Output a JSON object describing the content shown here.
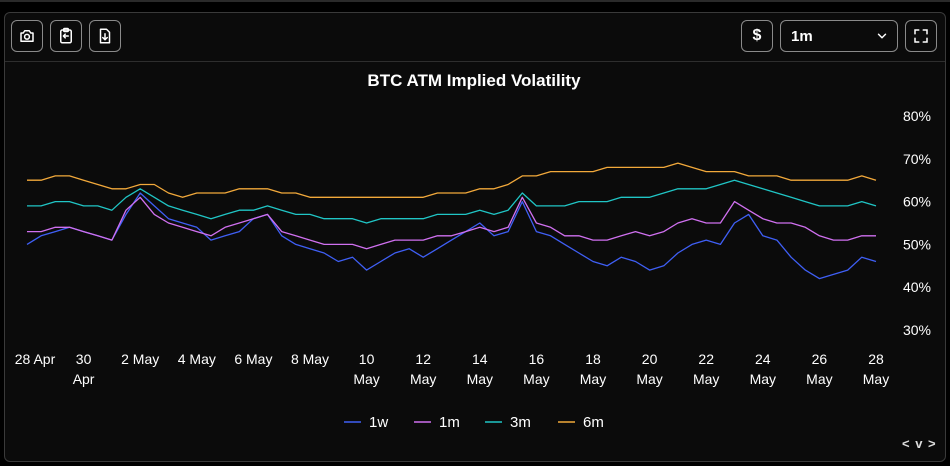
{
  "toolbar": {
    "currency_label": "$",
    "period_selected": "1m",
    "icons": [
      "camera-icon",
      "clipboard-copy-icon",
      "file-download-icon",
      "chevron-down-icon",
      "fullscreen-icon"
    ]
  },
  "nav": {
    "label": "< v >"
  },
  "chart_data": {
    "type": "line",
    "title": "BTC ATM Implied Volatility",
    "xlabel": "",
    "ylabel": "",
    "ylim": [
      30,
      80
    ],
    "yticks": [
      "80%",
      "70%",
      "60%",
      "50%",
      "40%",
      "30%"
    ],
    "ytick_values": [
      80,
      70,
      60,
      50,
      40,
      30
    ],
    "x_tick_labels": [
      [
        "28 Apr"
      ],
      [
        "30",
        "Apr"
      ],
      [
        "2 May"
      ],
      [
        "4 May"
      ],
      [
        "6 May"
      ],
      [
        "8 May"
      ],
      [
        "10",
        "May"
      ],
      [
        "12",
        "May"
      ],
      [
        "14",
        "May"
      ],
      [
        "16",
        "May"
      ],
      [
        "18",
        "May"
      ],
      [
        "20",
        "May"
      ],
      [
        "22",
        "May"
      ],
      [
        "24",
        "May"
      ],
      [
        "26",
        "May"
      ],
      [
        "28",
        "May"
      ]
    ],
    "x_tick_days": [
      0,
      2,
      4,
      6,
      8,
      10,
      12,
      14,
      16,
      18,
      20,
      22,
      24,
      26,
      28,
      30
    ],
    "x_range_days": [
      0,
      30
    ],
    "series": [
      {
        "name": "1w",
        "color": "#3f5ff5",
        "x": [
          0,
          0.5,
          1,
          1.5,
          2,
          2.5,
          3,
          3.5,
          4,
          4.5,
          5,
          5.5,
          6,
          6.5,
          7,
          7.5,
          8,
          8.5,
          9,
          9.5,
          10,
          10.5,
          11,
          11.5,
          12,
          12.5,
          13,
          13.5,
          14,
          14.5,
          15,
          15.5,
          16,
          16.5,
          17,
          17.5,
          18,
          18.5,
          19,
          19.5,
          20,
          20.5,
          21,
          21.5,
          22,
          22.5,
          23,
          23.5,
          24,
          24.5,
          25,
          25.5,
          26,
          26.5,
          27,
          27.5,
          28,
          28.5,
          29,
          29.5,
          30
        ],
        "values": [
          50,
          52,
          53,
          54,
          53,
          52,
          51,
          57,
          62,
          59,
          56,
          55,
          54,
          51,
          52,
          53,
          56,
          57,
          52,
          50,
          49,
          48,
          46,
          47,
          44,
          46,
          48,
          49,
          47,
          49,
          51,
          53,
          55,
          52,
          53,
          60,
          53,
          52,
          50,
          48,
          46,
          45,
          47,
          46,
          44,
          45,
          48,
          50,
          51,
          50,
          55,
          57,
          52,
          51,
          47,
          44,
          42,
          43,
          44,
          47,
          46
        ]
      },
      {
        "name": "1m",
        "color": "#d070f0",
        "x": [
          0,
          0.5,
          1,
          1.5,
          2,
          2.5,
          3,
          3.5,
          4,
          4.5,
          5,
          5.5,
          6,
          6.5,
          7,
          7.5,
          8,
          8.5,
          9,
          9.5,
          10,
          10.5,
          11,
          11.5,
          12,
          12.5,
          13,
          13.5,
          14,
          14.5,
          15,
          15.5,
          16,
          16.5,
          17,
          17.5,
          18,
          18.5,
          19,
          19.5,
          20,
          20.5,
          21,
          21.5,
          22,
          22.5,
          23,
          23.5,
          24,
          24.5,
          25,
          25.5,
          26,
          26.5,
          27,
          27.5,
          28,
          28.5,
          29,
          29.5,
          30
        ],
        "values": [
          53,
          53,
          54,
          54,
          53,
          52,
          51,
          58,
          61,
          57,
          55,
          54,
          53,
          52,
          54,
          55,
          56,
          57,
          53,
          52,
          51,
          50,
          50,
          50,
          49,
          50,
          51,
          51,
          51,
          52,
          52,
          53,
          54,
          53,
          54,
          61,
          55,
          54,
          52,
          52,
          51,
          51,
          52,
          53,
          52,
          53,
          55,
          56,
          55,
          55,
          60,
          58,
          56,
          55,
          55,
          54,
          52,
          51,
          51,
          52,
          52
        ]
      },
      {
        "name": "3m",
        "color": "#20c5c5",
        "x": [
          0,
          0.5,
          1,
          1.5,
          2,
          2.5,
          3,
          3.5,
          4,
          4.5,
          5,
          5.5,
          6,
          6.5,
          7,
          7.5,
          8,
          8.5,
          9,
          9.5,
          10,
          10.5,
          11,
          11.5,
          12,
          12.5,
          13,
          13.5,
          14,
          14.5,
          15,
          15.5,
          16,
          16.5,
          17,
          17.5,
          18,
          18.5,
          19,
          19.5,
          20,
          20.5,
          21,
          21.5,
          22,
          22.5,
          23,
          23.5,
          24,
          24.5,
          25,
          25.5,
          26,
          26.5,
          27,
          27.5,
          28,
          28.5,
          29,
          29.5,
          30
        ],
        "values": [
          59,
          59,
          60,
          60,
          59,
          59,
          58,
          61,
          63,
          61,
          59,
          58,
          57,
          56,
          57,
          58,
          58,
          59,
          58,
          57,
          57,
          56,
          56,
          56,
          55,
          56,
          56,
          56,
          56,
          57,
          57,
          57,
          58,
          57,
          58,
          62,
          59,
          59,
          59,
          60,
          60,
          60,
          61,
          61,
          61,
          62,
          63,
          63,
          63,
          64,
          65,
          64,
          63,
          62,
          61,
          60,
          59,
          59,
          59,
          60,
          59
        ]
      },
      {
        "name": "6m",
        "color": "#f2a93b",
        "x": [
          0,
          0.5,
          1,
          1.5,
          2,
          2.5,
          3,
          3.5,
          4,
          4.5,
          5,
          5.5,
          6,
          6.5,
          7,
          7.5,
          8,
          8.5,
          9,
          9.5,
          10,
          10.5,
          11,
          11.5,
          12,
          12.5,
          13,
          13.5,
          14,
          14.5,
          15,
          15.5,
          16,
          16.5,
          17,
          17.5,
          18,
          18.5,
          19,
          19.5,
          20,
          20.5,
          21,
          21.5,
          22,
          22.5,
          23,
          23.5,
          24,
          24.5,
          25,
          25.5,
          26,
          26.5,
          27,
          27.5,
          28,
          28.5,
          29,
          29.5,
          30
        ],
        "values": [
          65,
          65,
          66,
          66,
          65,
          64,
          63,
          63,
          64,
          64,
          62,
          61,
          62,
          62,
          62,
          63,
          63,
          63,
          62,
          62,
          61,
          61,
          61,
          61,
          61,
          61,
          61,
          61,
          61,
          62,
          62,
          62,
          63,
          63,
          64,
          66,
          66,
          67,
          67,
          67,
          67,
          68,
          68,
          68,
          68,
          68,
          69,
          68,
          67,
          67,
          67,
          66,
          66,
          66,
          65,
          65,
          65,
          65,
          65,
          66,
          65
        ]
      }
    ]
  }
}
